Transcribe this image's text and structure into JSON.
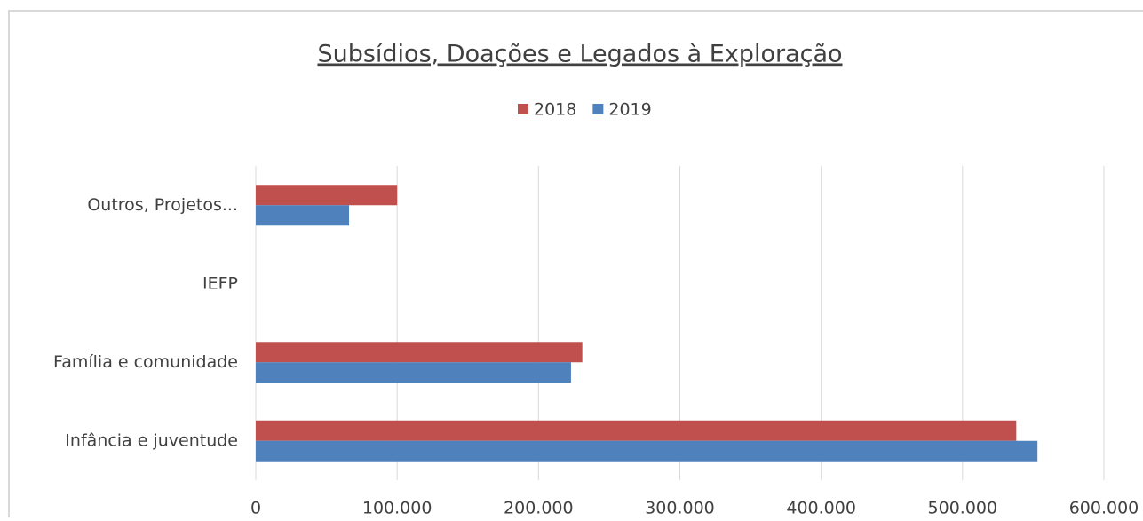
{
  "chart_data": {
    "type": "hbar",
    "title": "Subsídios, Doações e Legados à Exploração",
    "categories": [
      "Outros, Projetos...",
      "IEFP",
      "Família e comunidade",
      "Infância e juventude"
    ],
    "series": [
      {
        "name": "2018",
        "color": "#c0504d",
        "values": [
          100000,
          0,
          231000,
          538000
        ]
      },
      {
        "name": "2019",
        "color": "#4f81bd",
        "values": [
          66000,
          0,
          223000,
          553000
        ]
      }
    ],
    "xlim": [
      0,
      600000
    ],
    "xticks": [
      0,
      {
        "value": 100000,
        "label": "100.000"
      },
      {
        "value": 200000,
        "label": "200.000"
      },
      {
        "value": 300000,
        "label": "300.000"
      },
      {
        "value": 400000,
        "label": "400.000"
      },
      {
        "value": 500000,
        "label": "500.000"
      },
      {
        "value": 600000,
        "label": "600.000"
      }
    ],
    "grid": true
  }
}
